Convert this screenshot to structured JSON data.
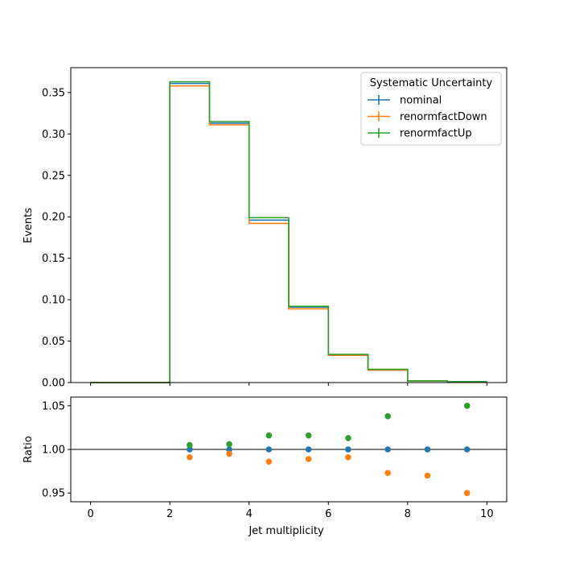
{
  "chart_data": {
    "type": "line",
    "subtype": "step-histogram-with-ratio-panel",
    "x_bin_edges": [
      0,
      1,
      2,
      3,
      4,
      5,
      6,
      7,
      8,
      9,
      10
    ],
    "x_label": "Jet multiplicity",
    "xlim": [
      -0.5,
      10.5
    ],
    "x_ticks": [
      0,
      2,
      4,
      6,
      8,
      10
    ],
    "main": {
      "ylabel": "Events",
      "ylim": [
        0,
        0.38
      ],
      "y_ticks": [
        "0.00",
        "0.05",
        "0.10",
        "0.15",
        "0.20",
        "0.25",
        "0.30",
        "0.35"
      ],
      "legend": {
        "title": "Systematic Uncertainty",
        "placement": "top-right"
      },
      "series": [
        {
          "name": "nominal",
          "color": "#1f77b4",
          "values": [
            0,
            0,
            0.361,
            0.313,
            0.196,
            0.091,
            0.033,
            0.015,
            0.002,
            0.001
          ]
        },
        {
          "name": "renormfactDown",
          "color": "#ff7f0e",
          "values": [
            0,
            0,
            0.358,
            0.311,
            0.192,
            0.089,
            0.033,
            0.015,
            0.002,
            0.0005
          ]
        },
        {
          "name": "renormfactUp",
          "color": "#2ca02c",
          "values": [
            0,
            0,
            0.363,
            0.315,
            0.199,
            0.092,
            0.034,
            0.016,
            0.002,
            0.001
          ]
        }
      ]
    },
    "ratio": {
      "ylabel": "Ratio",
      "ylim": [
        0.94,
        1.06
      ],
      "y_ticks": [
        "0.95",
        "1.00",
        "1.05"
      ],
      "reference_line": 1.0,
      "x": [
        2.5,
        3.5,
        4.5,
        5.5,
        6.5,
        7.5,
        8.5,
        9.5
      ],
      "series": [
        {
          "name": "nominal",
          "color": "#1f77b4",
          "values": [
            1.0,
            1.0,
            1.0,
            1.0,
            1.0,
            1.0,
            1.0,
            1.0
          ]
        },
        {
          "name": "renormfactDown",
          "color": "#ff7f0e",
          "values": [
            0.991,
            0.995,
            0.986,
            0.989,
            0.991,
            0.973,
            0.97,
            0.95
          ]
        },
        {
          "name": "renormfactUp",
          "color": "#2ca02c",
          "values": [
            1.005,
            1.006,
            1.016,
            1.016,
            1.013,
            1.038,
            null,
            1.05
          ]
        }
      ]
    }
  }
}
